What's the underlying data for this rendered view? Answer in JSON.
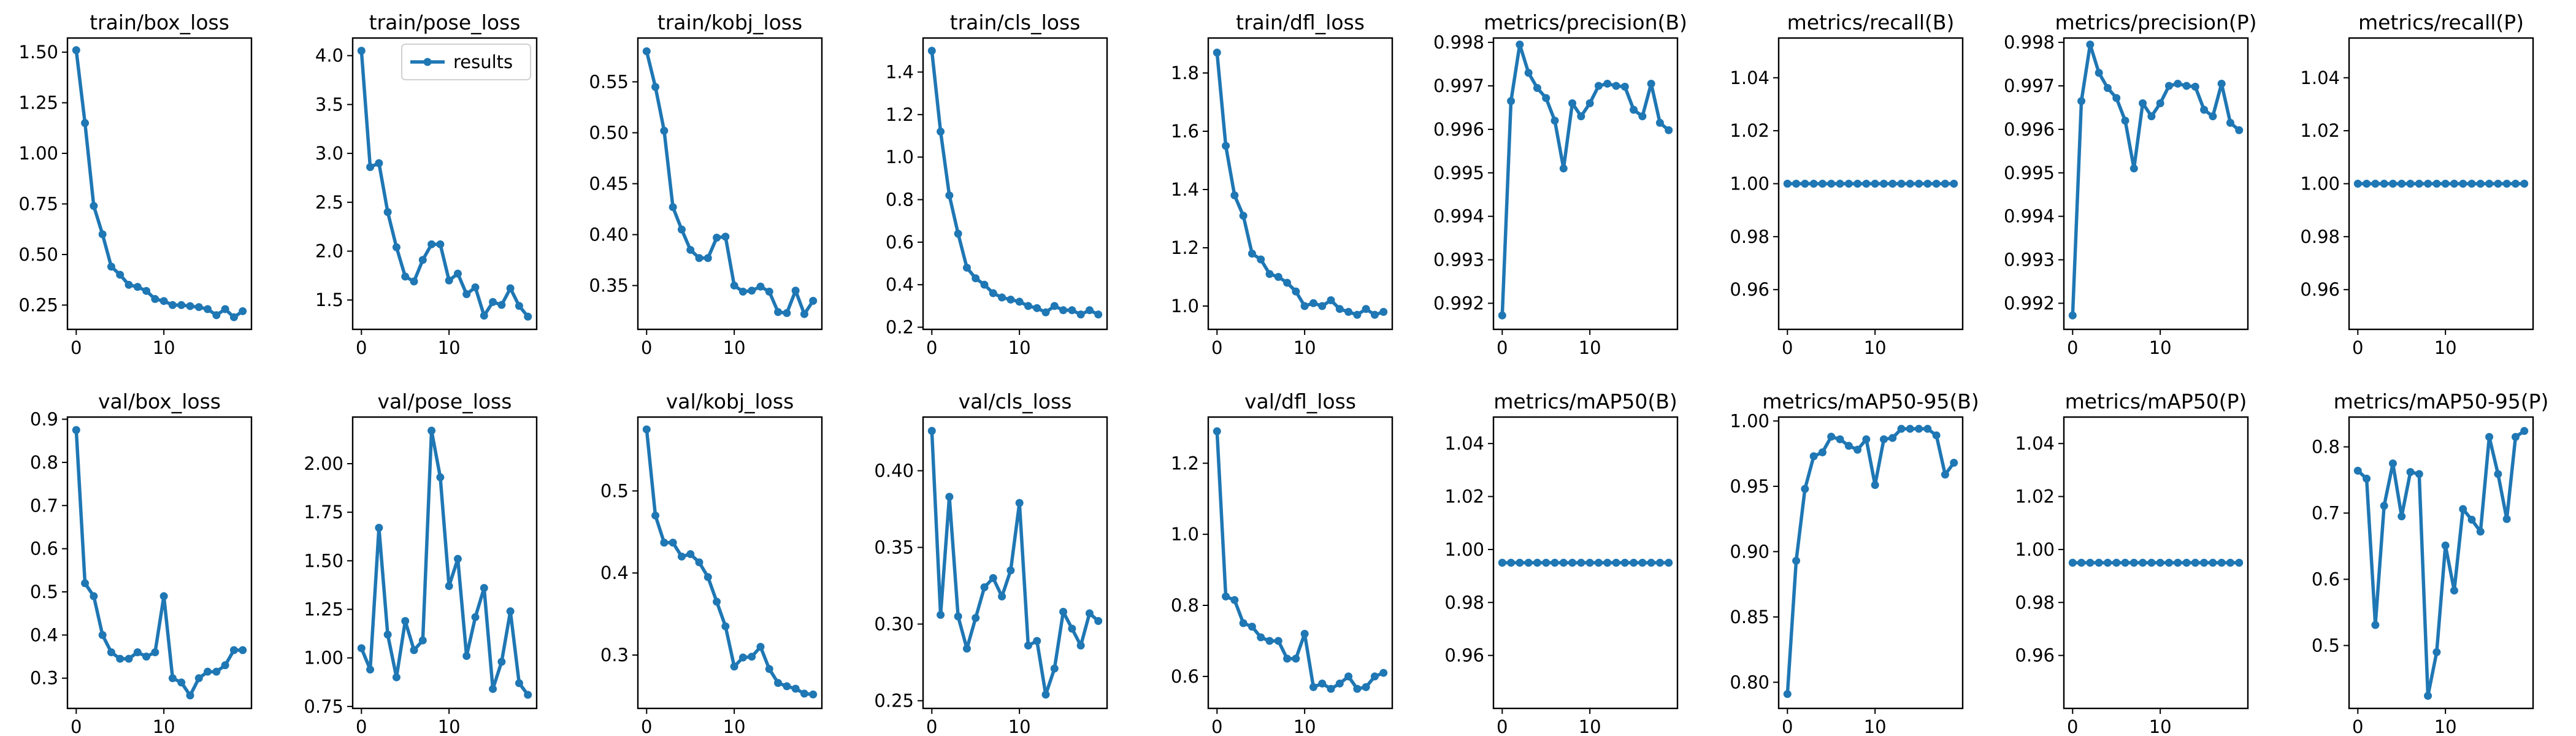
{
  "figure": {
    "legend_label": "results",
    "series_color": "#1f77b4"
  },
  "chart_data": [
    {
      "type": "line",
      "title": "train/box_loss",
      "x": [
        0,
        1,
        2,
        3,
        4,
        5,
        6,
        7,
        8,
        9,
        10,
        11,
        12,
        13,
        14,
        15,
        16,
        17,
        18,
        19
      ],
      "values": [
        1.51,
        1.15,
        0.74,
        0.6,
        0.44,
        0.4,
        0.35,
        0.34,
        0.32,
        0.28,
        0.27,
        0.25,
        0.25,
        0.245,
        0.24,
        0.23,
        0.2,
        0.23,
        0.19,
        0.22
      ],
      "xlim": [
        -1,
        20
      ],
      "ylim": [
        0.13,
        1.57
      ],
      "xticks": [
        0,
        10
      ],
      "xtick_labels": [
        "0",
        "10"
      ],
      "yticks": [
        0.25,
        0.5,
        0.75,
        1.0,
        1.25,
        1.5
      ],
      "ytick_labels": [
        "0.25",
        "0.50",
        "0.75",
        "1.00",
        "1.25",
        "1.50"
      ],
      "legend": false
    },
    {
      "type": "line",
      "title": "train/pose_loss",
      "x": [
        0,
        1,
        2,
        3,
        4,
        5,
        6,
        7,
        8,
        9,
        10,
        11,
        12,
        13,
        14,
        15,
        16,
        17,
        18,
        19
      ],
      "values": [
        4.05,
        2.86,
        2.9,
        2.4,
        2.04,
        1.74,
        1.69,
        1.91,
        2.07,
        2.07,
        1.7,
        1.77,
        1.56,
        1.63,
        1.34,
        1.48,
        1.45,
        1.62,
        1.44,
        1.33
      ],
      "xlim": [
        -1,
        20
      ],
      "ylim": [
        1.2,
        4.18
      ],
      "xticks": [
        0,
        10
      ],
      "xtick_labels": [
        "0",
        "10"
      ],
      "yticks": [
        1.5,
        2.0,
        2.5,
        3.0,
        3.5,
        4.0
      ],
      "ytick_labels": [
        "1.5",
        "2.0",
        "2.5",
        "3.0",
        "3.5",
        "4.0"
      ],
      "legend": true
    },
    {
      "type": "line",
      "title": "train/kobj_loss",
      "x": [
        0,
        1,
        2,
        3,
        4,
        5,
        6,
        7,
        8,
        9,
        10,
        11,
        12,
        13,
        14,
        15,
        16,
        17,
        18,
        19
      ],
      "values": [
        0.58,
        0.545,
        0.502,
        0.427,
        0.405,
        0.385,
        0.377,
        0.377,
        0.397,
        0.398,
        0.35,
        0.344,
        0.345,
        0.349,
        0.344,
        0.324,
        0.323,
        0.345,
        0.322,
        0.335
      ],
      "xlim": [
        -1,
        20
      ],
      "ylim": [
        0.307,
        0.593
      ],
      "xticks": [
        0,
        10
      ],
      "xtick_labels": [
        "0",
        "10"
      ],
      "yticks": [
        0.35,
        0.4,
        0.45,
        0.5,
        0.55
      ],
      "ytick_labels": [
        "0.35",
        "0.40",
        "0.45",
        "0.50",
        "0.55"
      ],
      "legend": false
    },
    {
      "type": "line",
      "title": "train/cls_loss",
      "x": [
        0,
        1,
        2,
        3,
        4,
        5,
        6,
        7,
        8,
        9,
        10,
        11,
        12,
        13,
        14,
        15,
        16,
        17,
        18,
        19
      ],
      "values": [
        1.5,
        1.12,
        0.82,
        0.64,
        0.48,
        0.43,
        0.4,
        0.36,
        0.34,
        0.33,
        0.32,
        0.3,
        0.29,
        0.27,
        0.3,
        0.28,
        0.28,
        0.26,
        0.28,
        0.26
      ],
      "xlim": [
        -1,
        20
      ],
      "ylim": [
        0.19,
        1.56
      ],
      "xticks": [
        0,
        10
      ],
      "xtick_labels": [
        "0",
        "10"
      ],
      "yticks": [
        0.2,
        0.4,
        0.6,
        0.8,
        1.0,
        1.2,
        1.4
      ],
      "ytick_labels": [
        "0.2",
        "0.4",
        "0.6",
        "0.8",
        "1.0",
        "1.2",
        "1.4"
      ],
      "legend": false
    },
    {
      "type": "line",
      "title": "train/dfl_loss",
      "x": [
        0,
        1,
        2,
        3,
        4,
        5,
        6,
        7,
        8,
        9,
        10,
        11,
        12,
        13,
        14,
        15,
        16,
        17,
        18,
        19
      ],
      "values": [
        1.87,
        1.55,
        1.38,
        1.31,
        1.18,
        1.16,
        1.11,
        1.1,
        1.08,
        1.05,
        1.0,
        1.01,
        1.0,
        1.02,
        0.99,
        0.98,
        0.97,
        0.99,
        0.97,
        0.98
      ],
      "xlim": [
        -1,
        20
      ],
      "ylim": [
        0.92,
        1.92
      ],
      "xticks": [
        0,
        10
      ],
      "xtick_labels": [
        "0",
        "10"
      ],
      "yticks": [
        1.0,
        1.2,
        1.4,
        1.6,
        1.8
      ],
      "ytick_labels": [
        "1.0",
        "1.2",
        "1.4",
        "1.6",
        "1.8"
      ],
      "legend": false
    },
    {
      "type": "line",
      "title": "metrics/precision(B)",
      "x": [
        0,
        1,
        2,
        3,
        4,
        5,
        6,
        7,
        8,
        9,
        10,
        11,
        12,
        13,
        14,
        15,
        16,
        17,
        18,
        19
      ],
      "values": [
        0.99172,
        0.99665,
        0.99795,
        0.9973,
        0.99695,
        0.99672,
        0.9962,
        0.9951,
        0.9966,
        0.9963,
        0.9966,
        0.997,
        0.99705,
        0.997,
        0.99698,
        0.99645,
        0.9963,
        0.99705,
        0.99615,
        0.99598
      ],
      "xlim": [
        -1,
        20
      ],
      "ylim": [
        0.9914,
        0.9981
      ],
      "xticks": [
        0,
        10
      ],
      "xtick_labels": [
        "0",
        "10"
      ],
      "yticks": [
        0.992,
        0.993,
        0.994,
        0.995,
        0.996,
        0.997,
        0.998
      ],
      "ytick_labels": [
        "0.992",
        "0.993",
        "0.994",
        "0.995",
        "0.996",
        "0.997",
        "0.998"
      ],
      "legend": false
    },
    {
      "type": "line",
      "title": "metrics/recall(B)",
      "x": [
        0,
        1,
        2,
        3,
        4,
        5,
        6,
        7,
        8,
        9,
        10,
        11,
        12,
        13,
        14,
        15,
        16,
        17,
        18,
        19
      ],
      "values": [
        1,
        1,
        1,
        1,
        1,
        1,
        1,
        1,
        1,
        1,
        1,
        1,
        1,
        1,
        1,
        1,
        1,
        1,
        1,
        1
      ],
      "xlim": [
        -1,
        20
      ],
      "ylim": [
        0.945,
        1.055
      ],
      "xticks": [
        0,
        10
      ],
      "xtick_labels": [
        "0",
        "10"
      ],
      "yticks": [
        0.96,
        0.98,
        1.0,
        1.02,
        1.04
      ],
      "ytick_labels": [
        "0.96",
        "0.98",
        "1.00",
        "1.02",
        "1.04"
      ],
      "legend": false
    },
    {
      "type": "line",
      "title": "metrics/precision(P)",
      "x": [
        0,
        1,
        2,
        3,
        4,
        5,
        6,
        7,
        8,
        9,
        10,
        11,
        12,
        13,
        14,
        15,
        16,
        17,
        18,
        19
      ],
      "values": [
        0.99172,
        0.99665,
        0.99795,
        0.9973,
        0.99695,
        0.99672,
        0.9962,
        0.9951,
        0.9966,
        0.9963,
        0.9966,
        0.997,
        0.99705,
        0.997,
        0.99698,
        0.99645,
        0.9963,
        0.99705,
        0.99615,
        0.99598
      ],
      "xlim": [
        -1,
        20
      ],
      "ylim": [
        0.9914,
        0.9981
      ],
      "xticks": [
        0,
        10
      ],
      "xtick_labels": [
        "0",
        "10"
      ],
      "yticks": [
        0.992,
        0.993,
        0.994,
        0.995,
        0.996,
        0.997,
        0.998
      ],
      "ytick_labels": [
        "0.992",
        "0.993",
        "0.994",
        "0.995",
        "0.996",
        "0.997",
        "0.998"
      ],
      "legend": false
    },
    {
      "type": "line",
      "title": "metrics/recall(P)",
      "x": [
        0,
        1,
        2,
        3,
        4,
        5,
        6,
        7,
        8,
        9,
        10,
        11,
        12,
        13,
        14,
        15,
        16,
        17,
        18,
        19
      ],
      "values": [
        1,
        1,
        1,
        1,
        1,
        1,
        1,
        1,
        1,
        1,
        1,
        1,
        1,
        1,
        1,
        1,
        1,
        1,
        1,
        1
      ],
      "xlim": [
        -1,
        20
      ],
      "ylim": [
        0.945,
        1.055
      ],
      "xticks": [
        0,
        10
      ],
      "xtick_labels": [
        "0",
        "10"
      ],
      "yticks": [
        0.96,
        0.98,
        1.0,
        1.02,
        1.04
      ],
      "ytick_labels": [
        "0.96",
        "0.98",
        "1.00",
        "1.02",
        "1.04"
      ],
      "legend": false
    },
    {
      "type": "line",
      "title": "val/box_loss",
      "x": [
        0,
        1,
        2,
        3,
        4,
        5,
        6,
        7,
        8,
        9,
        10,
        11,
        12,
        13,
        14,
        15,
        16,
        17,
        18,
        19
      ],
      "values": [
        0.875,
        0.52,
        0.49,
        0.4,
        0.36,
        0.345,
        0.345,
        0.36,
        0.35,
        0.36,
        0.49,
        0.3,
        0.29,
        0.26,
        0.3,
        0.315,
        0.315,
        0.33,
        0.365,
        0.365
      ],
      "xlim": [
        -1,
        20
      ],
      "ylim": [
        0.23,
        0.905
      ],
      "xticks": [
        0,
        10
      ],
      "xtick_labels": [
        "0",
        "10"
      ],
      "yticks": [
        0.3,
        0.4,
        0.5,
        0.6,
        0.7,
        0.8,
        0.9
      ],
      "ytick_labels": [
        "0.3",
        "0.4",
        "0.5",
        "0.6",
        "0.7",
        "0.8",
        "0.9"
      ],
      "legend": false
    },
    {
      "type": "line",
      "title": "val/pose_loss",
      "x": [
        0,
        1,
        2,
        3,
        4,
        5,
        6,
        7,
        8,
        9,
        10,
        11,
        12,
        13,
        14,
        15,
        16,
        17,
        18,
        19
      ],
      "values": [
        1.05,
        0.94,
        1.67,
        1.12,
        0.9,
        1.19,
        1.04,
        1.09,
        2.17,
        1.93,
        1.37,
        1.51,
        1.01,
        1.21,
        1.36,
        0.84,
        0.98,
        1.24,
        0.87,
        0.81
      ],
      "xlim": [
        -1,
        20
      ],
      "ylim": [
        0.74,
        2.24
      ],
      "xticks": [
        0,
        10
      ],
      "xtick_labels": [
        "0",
        "10"
      ],
      "yticks": [
        0.75,
        1.0,
        1.25,
        1.5,
        1.75,
        2.0
      ],
      "ytick_labels": [
        "0.75",
        "1.00",
        "1.25",
        "1.50",
        "1.75",
        "2.00"
      ],
      "legend": false
    },
    {
      "type": "line",
      "title": "val/kobj_loss",
      "x": [
        0,
        1,
        2,
        3,
        4,
        5,
        6,
        7,
        8,
        9,
        10,
        11,
        12,
        13,
        14,
        15,
        16,
        17,
        18,
        19
      ],
      "values": [
        0.575,
        0.47,
        0.437,
        0.437,
        0.42,
        0.423,
        0.413,
        0.395,
        0.365,
        0.335,
        0.286,
        0.297,
        0.298,
        0.31,
        0.283,
        0.266,
        0.262,
        0.259,
        0.253,
        0.252
      ],
      "xlim": [
        -1,
        20
      ],
      "ylim": [
        0.235,
        0.59
      ],
      "xticks": [
        0,
        10
      ],
      "xtick_labels": [
        "0",
        "10"
      ],
      "yticks": [
        0.3,
        0.4,
        0.5
      ],
      "ytick_labels": [
        "0.3",
        "0.4",
        "0.5"
      ],
      "legend": false
    },
    {
      "type": "line",
      "title": "val/cls_loss",
      "x": [
        0,
        1,
        2,
        3,
        4,
        5,
        6,
        7,
        8,
        9,
        10,
        11,
        12,
        13,
        14,
        15,
        16,
        17,
        18,
        19
      ],
      "values": [
        0.426,
        0.306,
        0.383,
        0.305,
        0.284,
        0.304,
        0.324,
        0.33,
        0.318,
        0.335,
        0.379,
        0.286,
        0.289,
        0.254,
        0.271,
        0.308,
        0.297,
        0.286,
        0.307,
        0.302
      ],
      "xlim": [
        -1,
        20
      ],
      "ylim": [
        0.245,
        0.435
      ],
      "xticks": [
        0,
        10
      ],
      "xtick_labels": [
        "0",
        "10"
      ],
      "yticks": [
        0.25,
        0.3,
        0.35,
        0.4
      ],
      "ytick_labels": [
        "0.25",
        "0.30",
        "0.35",
        "0.40"
      ],
      "legend": false
    },
    {
      "type": "line",
      "title": "val/dfl_loss",
      "x": [
        0,
        1,
        2,
        3,
        4,
        5,
        6,
        7,
        8,
        9,
        10,
        11,
        12,
        13,
        14,
        15,
        16,
        17,
        18,
        19
      ],
      "values": [
        1.29,
        0.825,
        0.815,
        0.75,
        0.74,
        0.71,
        0.7,
        0.7,
        0.65,
        0.65,
        0.72,
        0.57,
        0.58,
        0.565,
        0.58,
        0.6,
        0.565,
        0.57,
        0.6,
        0.61
      ],
      "xlim": [
        -1,
        20
      ],
      "ylim": [
        0.51,
        1.33
      ],
      "xticks": [
        0,
        10
      ],
      "xtick_labels": [
        "0",
        "10"
      ],
      "yticks": [
        0.6,
        0.8,
        1.0,
        1.2
      ],
      "ytick_labels": [
        "0.6",
        "0.8",
        "1.0",
        "1.2"
      ],
      "legend": false
    },
    {
      "type": "line",
      "title": "metrics/mAP50(B)",
      "x": [
        0,
        1,
        2,
        3,
        4,
        5,
        6,
        7,
        8,
        9,
        10,
        11,
        12,
        13,
        14,
        15,
        16,
        17,
        18,
        19
      ],
      "values": [
        0.995,
        0.995,
        0.995,
        0.995,
        0.995,
        0.995,
        0.995,
        0.995,
        0.995,
        0.995,
        0.995,
        0.995,
        0.995,
        0.995,
        0.995,
        0.995,
        0.995,
        0.995,
        0.995,
        0.995
      ],
      "xlim": [
        -1,
        20
      ],
      "ylim": [
        0.94,
        1.05
      ],
      "xticks": [
        0,
        10
      ],
      "xtick_labels": [
        "0",
        "10"
      ],
      "yticks": [
        0.96,
        0.98,
        1.0,
        1.02,
        1.04
      ],
      "ytick_labels": [
        "0.96",
        "0.98",
        "1.00",
        "1.02",
        "1.04"
      ],
      "legend": false
    },
    {
      "type": "line",
      "title": "metrics/mAP50-95(B)",
      "x": [
        0,
        1,
        2,
        3,
        4,
        5,
        6,
        7,
        8,
        9,
        10,
        11,
        12,
        13,
        14,
        15,
        16,
        17,
        18,
        19
      ],
      "values": [
        0.791,
        0.893,
        0.948,
        0.973,
        0.976,
        0.988,
        0.986,
        0.981,
        0.978,
        0.986,
        0.951,
        0.986,
        0.987,
        0.994,
        0.994,
        0.994,
        0.994,
        0.989,
        0.959,
        0.968
      ],
      "xlim": [
        -1,
        20
      ],
      "ylim": [
        0.78,
        1.003
      ],
      "xticks": [
        0,
        10
      ],
      "xtick_labels": [
        "0",
        "10"
      ],
      "yticks": [
        0.8,
        0.85,
        0.9,
        0.95,
        1.0
      ],
      "ytick_labels": [
        "0.80",
        "0.85",
        "0.90",
        "0.95",
        "1.00"
      ],
      "legend": false
    },
    {
      "type": "line",
      "title": "metrics/mAP50(P)",
      "x": [
        0,
        1,
        2,
        3,
        4,
        5,
        6,
        7,
        8,
        9,
        10,
        11,
        12,
        13,
        14,
        15,
        16,
        17,
        18,
        19
      ],
      "values": [
        0.995,
        0.995,
        0.995,
        0.995,
        0.995,
        0.995,
        0.995,
        0.995,
        0.995,
        0.995,
        0.995,
        0.995,
        0.995,
        0.995,
        0.995,
        0.995,
        0.995,
        0.995,
        0.995,
        0.995
      ],
      "xlim": [
        -1,
        20
      ],
      "ylim": [
        0.94,
        1.05
      ],
      "xticks": [
        0,
        10
      ],
      "xtick_labels": [
        "0",
        "10"
      ],
      "yticks": [
        0.96,
        0.98,
        1.0,
        1.02,
        1.04
      ],
      "ytick_labels": [
        "0.96",
        "0.98",
        "1.00",
        "1.02",
        "1.04"
      ],
      "legend": false
    },
    {
      "type": "line",
      "title": "metrics/mAP50-95(P)",
      "x": [
        0,
        1,
        2,
        3,
        4,
        5,
        6,
        7,
        8,
        9,
        10,
        11,
        12,
        13,
        14,
        15,
        16,
        17,
        18,
        19
      ],
      "values": [
        0.764,
        0.752,
        0.531,
        0.711,
        0.775,
        0.695,
        0.762,
        0.759,
        0.424,
        0.49,
        0.651,
        0.583,
        0.706,
        0.69,
        0.672,
        0.815,
        0.759,
        0.691,
        0.815,
        0.824
      ],
      "xlim": [
        -1,
        20
      ],
      "ylim": [
        0.405,
        0.845
      ],
      "xticks": [
        0,
        10
      ],
      "xtick_labels": [
        "0",
        "10"
      ],
      "yticks": [
        0.5,
        0.6,
        0.7,
        0.8
      ],
      "ytick_labels": [
        "0.5",
        "0.6",
        "0.7",
        "0.8"
      ],
      "legend": false
    }
  ]
}
